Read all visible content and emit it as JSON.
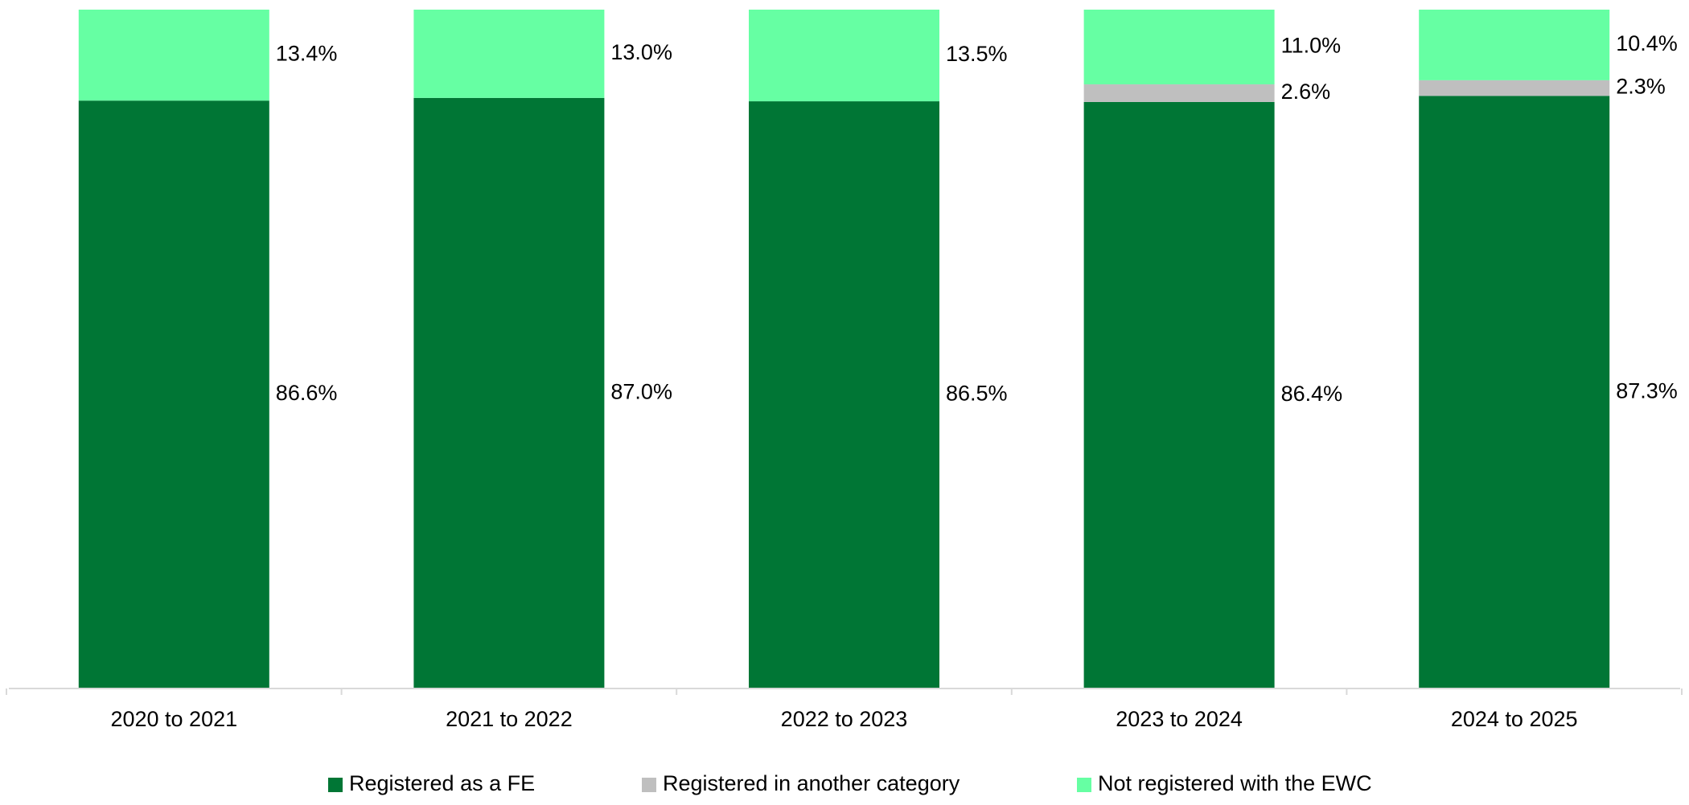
{
  "chart_data": {
    "type": "stacked_bar",
    "categories": [
      "2020 to 2021",
      "2021 to 2022",
      "2022 to 2023",
      "2023 to 2024",
      "2024 to 2025"
    ],
    "series": [
      {
        "name": "Registered as a FE",
        "color": "#007635",
        "values": [
          86.6,
          87.0,
          86.5,
          86.4,
          87.3
        ],
        "value_labels": [
          "86.6%",
          "87.0%",
          "86.5%",
          "86.4%",
          "87.3%"
        ]
      },
      {
        "name": "Registered in another category",
        "color": "#bfbfbf",
        "values": [
          null,
          null,
          null,
          2.6,
          2.3
        ],
        "value_labels": [
          null,
          null,
          null,
          "2.6%",
          "2.3%"
        ]
      },
      {
        "name": "Not registered with the EWC",
        "color": "#66ffa3",
        "values": [
          13.4,
          13.0,
          13.5,
          11.0,
          10.4
        ],
        "value_labels": [
          "13.4%",
          "13.0%",
          "13.5%",
          "11.0%",
          "10.4%"
        ]
      }
    ],
    "ylim": [
      0,
      100
    ],
    "legend": "bottom"
  }
}
